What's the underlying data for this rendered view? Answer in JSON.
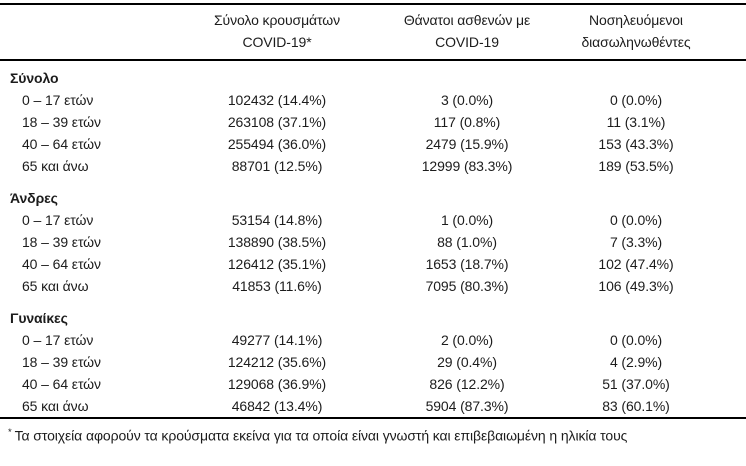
{
  "table": {
    "header": {
      "columns": [
        {
          "line1": "Σύνολο κρουσμάτων",
          "line2": "COVID-19*"
        },
        {
          "line1": "Θάνατοι ασθενών με",
          "line2": "COVID-19"
        },
        {
          "line1": "Νοσηλευόμενοι",
          "line2": "διασωληνωθέντες"
        }
      ]
    },
    "sections": [
      {
        "label": "Σύνολο",
        "rows": [
          {
            "age": "0 – 17 ετών",
            "cases": "102432 (14.4%)",
            "deaths": "3 (0.0%)",
            "intubated": "0 (0.0%)"
          },
          {
            "age": "18 – 39 ετών",
            "cases": "263108 (37.1%)",
            "deaths": "117 (0.8%)",
            "intubated": "11 (3.1%)"
          },
          {
            "age": "40 – 64 ετών",
            "cases": "255494 (36.0%)",
            "deaths": "2479 (15.9%)",
            "intubated": "153 (43.3%)"
          },
          {
            "age": "65 και άνω",
            "cases": "88701 (12.5%)",
            "deaths": "12999 (83.3%)",
            "intubated": "189 (53.5%)"
          }
        ]
      },
      {
        "label": "Άνδρες",
        "rows": [
          {
            "age": "0 – 17 ετών",
            "cases": "53154 (14.8%)",
            "deaths": "1 (0.0%)",
            "intubated": "0 (0.0%)"
          },
          {
            "age": "18 – 39 ετών",
            "cases": "138890 (38.5%)",
            "deaths": "88 (1.0%)",
            "intubated": "7 (3.3%)"
          },
          {
            "age": "40 – 64 ετών",
            "cases": "126412 (35.1%)",
            "deaths": "1653 (18.7%)",
            "intubated": "102 (47.4%)"
          },
          {
            "age": "65 και άνω",
            "cases": "41853 (11.6%)",
            "deaths": "7095 (80.3%)",
            "intubated": "106 (49.3%)"
          }
        ]
      },
      {
        "label": "Γυναίκες",
        "rows": [
          {
            "age": "0 – 17 ετών",
            "cases": "49277 (14.1%)",
            "deaths": "2 (0.0%)",
            "intubated": "0 (0.0%)"
          },
          {
            "age": "18 – 39 ετών",
            "cases": "124212 (35.6%)",
            "deaths": "29 (0.4%)",
            "intubated": "4 (2.9%)"
          },
          {
            "age": "40 – 64 ετών",
            "cases": "129068 (36.9%)",
            "deaths": "826 (12.2%)",
            "intubated": "51 (37.0%)"
          },
          {
            "age": "65 και άνω",
            "cases": "46842 (13.4%)",
            "deaths": "5904 (87.3%)",
            "intubated": "83 (60.1%)"
          }
        ]
      }
    ],
    "footnote": {
      "marker": "*",
      "text": "Τα στοιχεία αφορούν τα κρούσματα εκείνα για τα οποία είναι γνωστή και επιβεβαιωμένη η ηλικία τους"
    }
  },
  "colors": {
    "background": "#ffffff",
    "text": "#1c1c1c",
    "rule": "#000000"
  }
}
